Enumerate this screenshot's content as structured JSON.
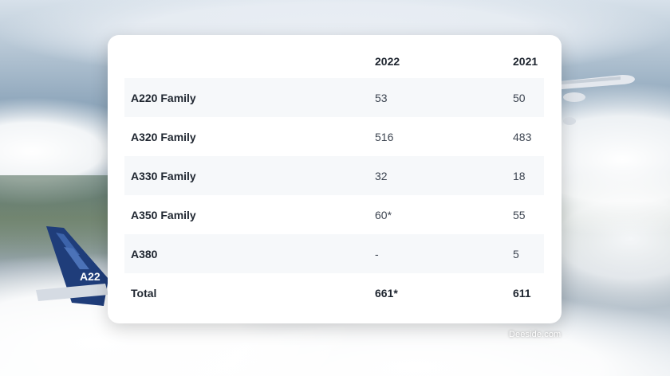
{
  "chart_data": {
    "type": "table",
    "columns": [
      "",
      "2022",
      "2021"
    ],
    "rows": [
      {
        "label": "A220 Family",
        "v2022": "53",
        "v2021": "50"
      },
      {
        "label": "A320 Family",
        "v2022": "516",
        "v2021": "483"
      },
      {
        "label": "A330 Family",
        "v2022": "32",
        "v2021": "18"
      },
      {
        "label": "A350 Family",
        "v2022": "60*",
        "v2021": "55"
      },
      {
        "label": "A380",
        "v2022": "-",
        "v2021": "5"
      },
      {
        "label": "Total",
        "v2022": "661*",
        "v2021": "611"
      }
    ]
  },
  "watermark": "Deeside.com"
}
